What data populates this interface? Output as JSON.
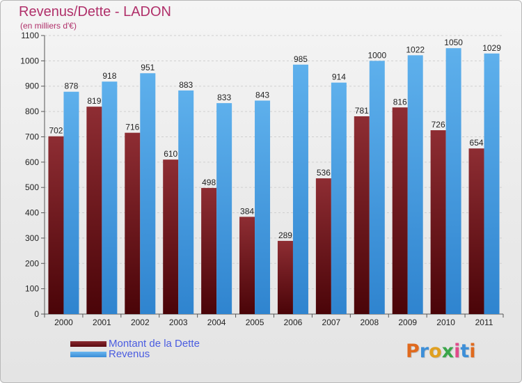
{
  "header": {
    "title": "Revenus/Dette - LADON",
    "subtitle": "(en milliers d'€)"
  },
  "chart_data": {
    "type": "bar",
    "title": "Revenus/Dette - LADON",
    "subtitle": "(en milliers d'€)",
    "categories": [
      "2000",
      "2001",
      "2002",
      "2003",
      "2004",
      "2005",
      "2006",
      "2007",
      "2008",
      "2009",
      "2010",
      "2011"
    ],
    "series": [
      {
        "name": "Montant de la Dette",
        "color": "#7a1e24",
        "values": [
          702,
          819,
          716,
          610,
          498,
          384,
          289,
          536,
          781,
          816,
          726,
          654
        ]
      },
      {
        "name": "Revenus",
        "color": "#4aa0e2",
        "values": [
          878,
          918,
          951,
          883,
          833,
          843,
          985,
          914,
          1000,
          1022,
          1050,
          1029
        ]
      }
    ],
    "yticks": [
      0,
      100,
      200,
      300,
      400,
      500,
      600,
      700,
      800,
      900,
      1000,
      1100
    ],
    "ylim": [
      0,
      1100
    ],
    "grid": "horizontal dashed",
    "legend_placement": "bottom-left"
  },
  "legend": {
    "items": [
      {
        "label": "Montant de la Dette",
        "color": "#5a0a10"
      },
      {
        "label": "Revenus",
        "color": "#4aa0e2"
      }
    ]
  },
  "logo": {
    "letters": [
      "P",
      "r",
      "o",
      "x",
      "i",
      "t",
      "i"
    ],
    "colors": [
      "#e06a1e",
      "#3d8fd8",
      "#e0a020",
      "#3aa64a",
      "#e04a8a",
      "#3d8fd8",
      "#e06a1e"
    ]
  }
}
